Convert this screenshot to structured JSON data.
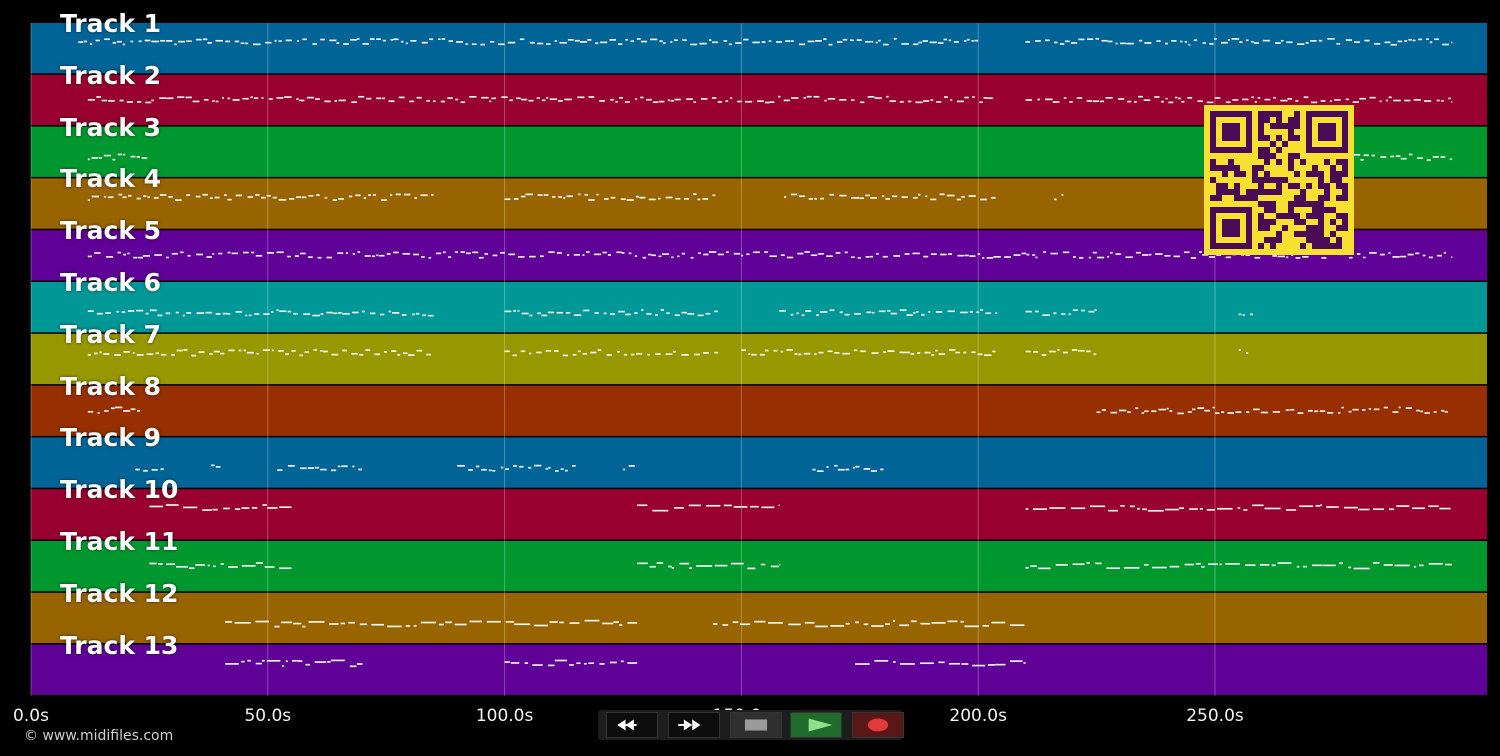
{
  "tracks": [
    {
      "label": "Track 1",
      "color": "#006497"
    },
    {
      "label": "Track 2",
      "color": "#97002f"
    },
    {
      "label": "Track 3",
      "color": "#00972f"
    },
    {
      "label": "Track 4",
      "color": "#976400"
    },
    {
      "label": "Track 5",
      "color": "#5f0097"
    },
    {
      "label": "Track 6",
      "color": "#009797"
    },
    {
      "label": "Track 7",
      "color": "#979700"
    },
    {
      "label": "Track 8",
      "color": "#972f00"
    },
    {
      "label": "Track 9",
      "color": "#006497"
    },
    {
      "label": "Track 10",
      "color": "#97002f"
    },
    {
      "label": "Track 11",
      "color": "#00972f"
    },
    {
      "label": "Track 12",
      "color": "#976400"
    },
    {
      "label": "Track 13",
      "color": "#5f0097"
    }
  ],
  "timeline": {
    "duration_seconds": 300,
    "ticks": [
      {
        "seconds": 0,
        "label": "0.0s"
      },
      {
        "seconds": 50,
        "label": "50.0s"
      },
      {
        "seconds": 100,
        "label": "100.0s"
      },
      {
        "seconds": 150,
        "label": "150.0s"
      },
      {
        "seconds": 200,
        "label": "200.0s"
      },
      {
        "seconds": 250,
        "label": "250.0s"
      }
    ]
  },
  "copyright": "© www.midifiles.com",
  "transport": {
    "rewind_icon": "rewind-icon",
    "fast_forward_icon": "fast-forward-icon",
    "stop_icon": "stop-icon",
    "play_icon": "play-icon",
    "record_icon": "record-icon"
  },
  "qr_code": {
    "color": "#f8e030",
    "background": "#4a0a55"
  }
}
